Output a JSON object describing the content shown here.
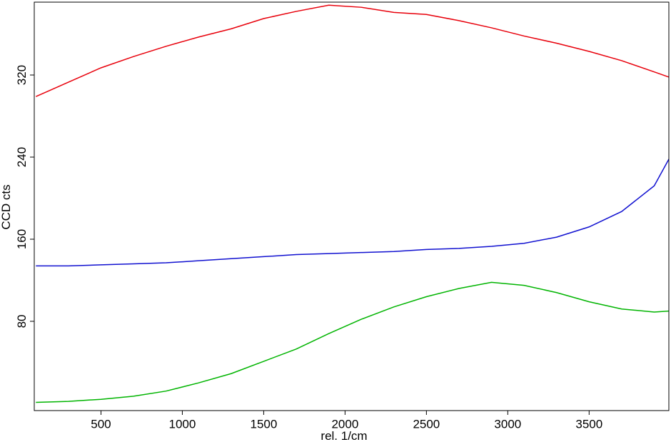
{
  "chart_data": {
    "type": "line",
    "x_label": "rel. 1/cm",
    "y_label": "CCD cts",
    "x": [
      100,
      300,
      500,
      700,
      900,
      1100,
      1300,
      1500,
      1700,
      1900,
      2100,
      2300,
      2500,
      2700,
      2900,
      3100,
      3300,
      3500,
      3700,
      3900,
      3990
    ],
    "series": [
      {
        "color": "#e8000b",
        "values": [
          299,
          313,
          327,
          338,
          348,
          357,
          365,
          375,
          382,
          388,
          386,
          381,
          379,
          373,
          366,
          358,
          351,
          343,
          334,
          323,
          318
        ]
      },
      {
        "color": "#1010d0",
        "values": [
          134,
          134,
          135,
          136,
          137,
          139,
          141,
          143,
          145,
          146,
          147,
          148,
          150,
          151,
          153,
          156,
          162,
          172,
          187,
          212,
          238
        ]
      },
      {
        "color": "#00b400",
        "values": [
          1,
          2,
          4,
          7,
          12,
          20,
          29,
          41,
          53,
          68,
          82,
          94,
          104,
          112,
          118,
          115,
          108,
          99,
          92,
          89,
          90
        ]
      }
    ],
    "xlim": [
      90,
      3990
    ],
    "ylim": [
      -7,
      391
    ],
    "xticks": [
      500,
      1000,
      1500,
      2000,
      2500,
      3000,
      3500
    ],
    "yticks": [
      80,
      160,
      240,
      320
    ]
  }
}
